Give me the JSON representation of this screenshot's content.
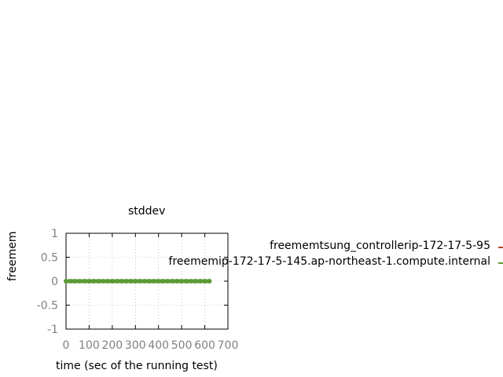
{
  "chart_data": {
    "type": "line",
    "title": "stddev",
    "xlabel": "time (sec of the running test)",
    "ylabel": "freemem",
    "xlim": [
      0,
      700
    ],
    "ylim": [
      -1,
      1
    ],
    "xticks": [
      "0",
      "100",
      "200",
      "300",
      "400",
      "500",
      "600",
      "700"
    ],
    "yticks": [
      "1",
      "0.5",
      "0",
      "-0.5",
      "-1"
    ],
    "grid": true,
    "legend_position": "right",
    "series": [
      {
        "name": "freememtsung_controllerip-172-17-5-95",
        "color": "#b5412e",
        "x": [
          0,
          10
        ],
        "y": [
          0,
          0
        ]
      },
      {
        "name": "freememip-172-17-5-145.ap-northeast-1.compute.internal",
        "color": "#5b9a36",
        "x": [
          0,
          20,
          40,
          60,
          80,
          100,
          120,
          140,
          160,
          180,
          200,
          220,
          240,
          260,
          280,
          300,
          320,
          340,
          360,
          380,
          400,
          420,
          440,
          460,
          480,
          500,
          520,
          540,
          560,
          580,
          600,
          620
        ],
        "y": [
          0,
          0,
          0,
          0,
          0,
          0,
          0,
          0,
          0,
          0,
          0,
          0,
          0,
          0,
          0,
          0,
          0,
          0,
          0,
          0,
          0,
          0,
          0,
          0,
          0,
          0,
          0,
          0,
          0,
          0,
          0,
          0
        ]
      }
    ]
  }
}
